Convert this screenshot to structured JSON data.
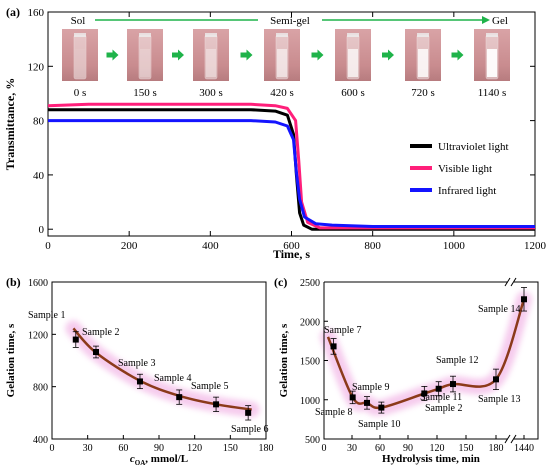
{
  "panels": [
    {
      "panel_label": "(a)",
      "chart_data": {
        "type": "line",
        "xlabel": "Time, s",
        "ylabel": "Transmittance, %",
        "xlim": [
          0,
          1200
        ],
        "ylim": [
          -5,
          160
        ],
        "xticks": [
          0,
          200,
          400,
          600,
          800,
          1000,
          1200
        ],
        "yticks": [
          0,
          40,
          80,
          120,
          160
        ],
        "grid": false,
        "legend_position": "right",
        "series": [
          {
            "name": "Ultraviolet light",
            "color": "#000000",
            "points": [
              [
                0,
                88
              ],
              [
                100,
                88
              ],
              [
                300,
                88
              ],
              [
                500,
                88
              ],
              [
                560,
                87
              ],
              [
                590,
                84
              ],
              [
                605,
                70
              ],
              [
                612,
                40
              ],
              [
                620,
                12
              ],
              [
                630,
                3
              ],
              [
                650,
                0
              ],
              [
                800,
                0
              ],
              [
                1000,
                0
              ],
              [
                1200,
                0
              ]
            ]
          },
          {
            "name": "Visible light",
            "color": "#ff1f7a",
            "points": [
              [
                0,
                91
              ],
              [
                100,
                92
              ],
              [
                300,
                92
              ],
              [
                500,
                92
              ],
              [
                560,
                91
              ],
              [
                590,
                89
              ],
              [
                610,
                80
              ],
              [
                618,
                50
              ],
              [
                625,
                20
              ],
              [
                640,
                5
              ],
              [
                670,
                1
              ],
              [
                800,
                1
              ],
              [
                1000,
                1
              ],
              [
                1200,
                1
              ]
            ]
          },
          {
            "name": "Infrared light",
            "color": "#1414ff",
            "points": [
              [
                0,
                80
              ],
              [
                100,
                80
              ],
              [
                300,
                80
              ],
              [
                500,
                80
              ],
              [
                560,
                79
              ],
              [
                590,
                76
              ],
              [
                605,
                66
              ],
              [
                612,
                42
              ],
              [
                620,
                22
              ],
              [
                632,
                9
              ],
              [
                660,
                4
              ],
              [
                700,
                3
              ],
              [
                800,
                2
              ],
              [
                1000,
                2
              ],
              [
                1200,
                2
              ]
            ]
          }
        ]
      },
      "stages": {
        "start": "Sol",
        "middle": "Semi-gel",
        "end": "Gel"
      },
      "photo_labels": [
        "0 s",
        "150 s",
        "300 s",
        "420 s",
        "600 s",
        "720 s",
        "1140 s"
      ],
      "photo_opacity": [
        0.05,
        0.18,
        0.35,
        0.55,
        0.7,
        0.8,
        0.92
      ]
    },
    {
      "panel_label": "(b)",
      "chart_data": {
        "type": "scatter",
        "xlabel_main": "c",
        "xlabel_sub": "OA",
        "xlabel_rest": ", mmol/L",
        "ylabel": "Gelation time, s",
        "xlim": [
          0,
          180
        ],
        "ylim": [
          400,
          1600
        ],
        "xticks": [
          0,
          30,
          60,
          90,
          120,
          150,
          180
        ],
        "yticks": [
          400,
          800,
          1200,
          1600
        ],
        "grid": false,
        "series": [
          {
            "name": "",
            "color": "#000000",
            "points": [
              {
                "x": 20,
                "y": 1160,
                "err": 60,
                "label": "Sample 1"
              },
              {
                "x": 37,
                "y": 1065,
                "err": 45,
                "label": "Sample 2"
              },
              {
                "x": 74,
                "y": 840,
                "err": 55,
                "label": "Sample 3"
              },
              {
                "x": 107,
                "y": 720,
                "err": 55,
                "label": "Sample 4"
              },
              {
                "x": 138,
                "y": 665,
                "err": 55,
                "label": "Sample 5"
              },
              {
                "x": 165,
                "y": 600,
                "err": 55,
                "label": "Sample 6"
              }
            ]
          }
        ],
        "fit": {
          "color": "#8b3a1a",
          "points": [
            [
              18,
              1245
            ],
            [
              37,
              1060
            ],
            [
              74,
              845
            ],
            [
              107,
              730
            ],
            [
              138,
              665
            ],
            [
              168,
              625
            ]
          ]
        }
      }
    },
    {
      "panel_label": "(c)",
      "chart_data": {
        "type": "scatter",
        "xlabel": "Hydrolysis time, min",
        "ylabel": "Gelation time, s",
        "xlim": [
          0,
          200
        ],
        "ylim": [
          500,
          2500
        ],
        "xticks": [
          "0",
          "30",
          "60",
          "90",
          "120",
          "150",
          "180",
          "1440"
        ],
        "yticks": [
          500,
          1000,
          1500,
          2000,
          2500
        ],
        "axis_break": true,
        "grid": false,
        "series": [
          {
            "name": "",
            "color": "#000000",
            "points": [
              {
                "x": "10",
                "y": 1680,
                "err": 100,
                "label": "Sample 7"
              },
              {
                "x": "30",
                "y": 1030,
                "err": 80,
                "label": "Sample 8"
              },
              {
                "x": "45",
                "y": 960,
                "err": 80,
                "label": "Sample 9"
              },
              {
                "x": "60",
                "y": 900,
                "err": 70,
                "label": "Sample 10"
              },
              {
                "x": "105",
                "y": 1080,
                "err": 90,
                "label": "Sample 11"
              },
              {
                "x": "120",
                "y": 1140,
                "err": 90,
                "label": "Sample 2"
              },
              {
                "x": "135",
                "y": 1200,
                "err": 100,
                "label": "Sample 12"
              },
              {
                "x": "180",
                "y": 1260,
                "err": 130,
                "label": "Sample 13"
              },
              {
                "x": "1440",
                "y": 2280,
                "err": 150,
                "label": "Sample 14"
              }
            ]
          }
        ],
        "fit": {
          "color": "#8b3a1a"
        }
      }
    }
  ]
}
